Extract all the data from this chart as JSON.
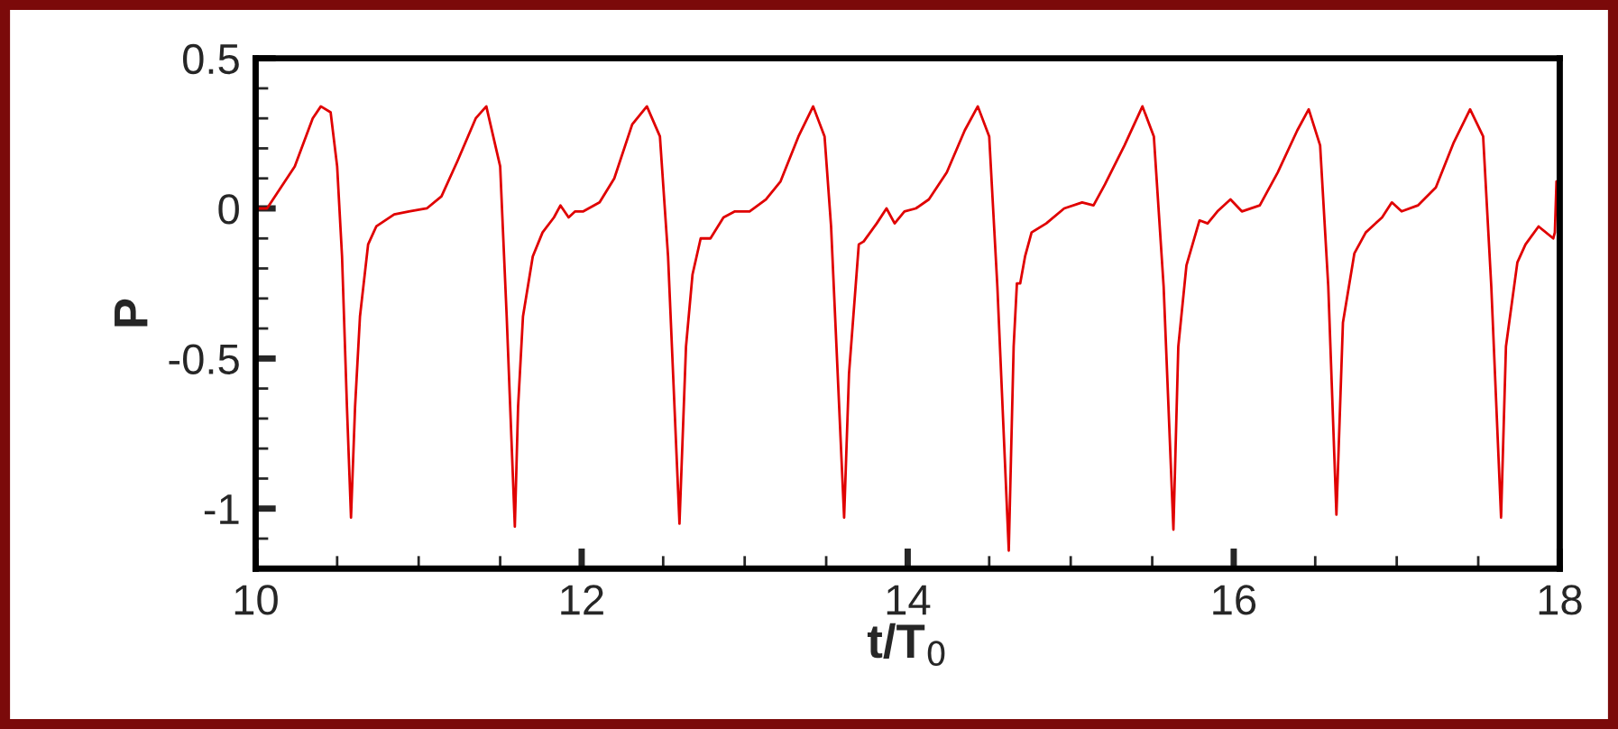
{
  "chart_data": {
    "type": "line",
    "xlabel": "t/T$_{0}$",
    "ylabel": "P",
    "xlim": [
      10,
      18
    ],
    "xticks": [
      10,
      12,
      14,
      16,
      18
    ],
    "ylim": [
      -1.2,
      0.5
    ],
    "yticks": [
      {
        "value": 0.5,
        "label": "0.5"
      },
      0,
      {
        "value": -0.5,
        "label": "-0.5"
      },
      {
        "value": -1,
        "label": "-1"
      }
    ],
    "grid": false,
    "marker": "none",
    "line_style": "solid",
    "series": [
      {
        "color": "#e00000",
        "x": [
          10.0,
          10.07,
          10.24,
          10.35,
          10.4,
          10.46,
          10.5,
          10.53,
          10.56,
          10.585,
          10.61,
          10.64,
          10.69,
          10.74,
          10.85,
          10.94,
          11.05,
          11.14,
          11.24,
          11.35,
          11.415,
          11.5,
          11.54,
          11.59,
          11.61,
          11.64,
          11.7,
          11.76,
          11.83,
          11.87,
          11.92,
          11.96,
          12.01,
          12.11,
          12.2,
          12.31,
          12.4,
          12.48,
          12.53,
          12.6,
          12.64,
          12.68,
          12.73,
          12.79,
          12.87,
          12.94,
          13.03,
          13.13,
          13.22,
          13.33,
          13.42,
          13.49,
          13.53,
          13.61,
          13.64,
          13.7,
          13.73,
          13.81,
          13.87,
          13.92,
          13.98,
          14.05,
          14.13,
          14.24,
          14.35,
          14.43,
          14.5,
          14.55,
          14.62,
          14.65,
          14.67,
          14.69,
          14.72,
          14.76,
          14.85,
          14.96,
          15.07,
          15.14,
          15.21,
          15.33,
          15.44,
          15.51,
          15.57,
          15.63,
          15.66,
          15.71,
          15.79,
          15.84,
          15.9,
          15.98,
          16.05,
          16.16,
          16.27,
          16.39,
          16.46,
          16.53,
          16.58,
          16.63,
          16.67,
          16.74,
          16.81,
          16.91,
          16.97,
          17.03,
          17.13,
          17.24,
          17.35,
          17.45,
          17.53,
          17.58,
          17.64,
          17.67,
          17.74,
          17.79,
          17.87,
          17.96,
          17.97,
          17.98
        ],
        "values": [
          0.0,
          0.0,
          0.14,
          0.3,
          0.34,
          0.32,
          0.14,
          -0.16,
          -0.66,
          -1.03,
          -0.66,
          -0.36,
          -0.12,
          -0.06,
          -0.02,
          -0.01,
          0.0,
          0.04,
          0.16,
          0.3,
          0.34,
          0.14,
          -0.36,
          -1.06,
          -0.66,
          -0.36,
          -0.16,
          -0.08,
          -0.03,
          0.01,
          -0.03,
          -0.01,
          -0.01,
          0.02,
          0.1,
          0.28,
          0.34,
          0.24,
          -0.16,
          -1.05,
          -0.46,
          -0.22,
          -0.1,
          -0.1,
          -0.03,
          -0.01,
          -0.01,
          0.03,
          0.09,
          0.24,
          0.34,
          0.24,
          -0.06,
          -1.03,
          -0.55,
          -0.12,
          -0.11,
          -0.05,
          0.0,
          -0.05,
          -0.01,
          0.0,
          0.03,
          0.12,
          0.26,
          0.34,
          0.24,
          -0.26,
          -1.14,
          -0.46,
          -0.25,
          -0.25,
          -0.16,
          -0.08,
          -0.05,
          0.0,
          0.02,
          0.01,
          0.08,
          0.21,
          0.34,
          0.24,
          -0.26,
          -1.07,
          -0.46,
          -0.19,
          -0.04,
          -0.05,
          -0.01,
          0.03,
          -0.01,
          0.01,
          0.12,
          0.26,
          0.33,
          0.21,
          -0.26,
          -1.02,
          -0.38,
          -0.15,
          -0.08,
          -0.03,
          0.02,
          -0.01,
          0.01,
          0.07,
          0.22,
          0.33,
          0.24,
          -0.26,
          -1.03,
          -0.46,
          -0.18,
          -0.12,
          -0.06,
          -0.1,
          -0.08,
          0.09
        ]
      }
    ]
  }
}
